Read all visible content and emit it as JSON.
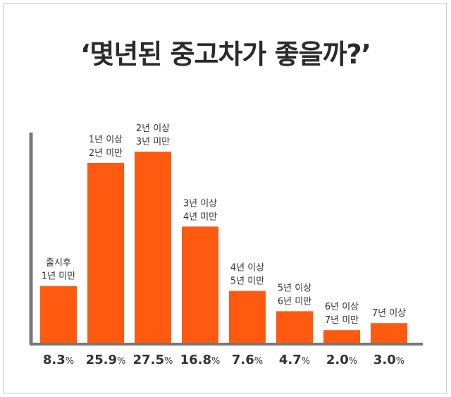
{
  "chart_data": {
    "type": "bar",
    "title": "‘몇년된 중고차가 좋을까?’",
    "categories": [
      [
        "출시후",
        "1년 미만"
      ],
      [
        "1년 이상",
        "2년 미만"
      ],
      [
        "2년 이상",
        "3년 미만"
      ],
      [
        "3년 이상",
        "4년 미만"
      ],
      [
        "4년 이상",
        "5년 미만"
      ],
      [
        "5년 이상",
        "6년 미만"
      ],
      [
        "6년 이상",
        "7년 미만"
      ],
      [
        "7년 이상"
      ]
    ],
    "values": [
      8.3,
      25.9,
      27.5,
      16.8,
      7.6,
      4.7,
      2.0,
      3.0
    ],
    "value_labels": [
      "8.3",
      "25.9",
      "27.5",
      "16.8",
      "7.6",
      "4.7",
      "2.0",
      "3.0"
    ],
    "unit": "%",
    "ylim": [
      0,
      34
    ],
    "grid": false,
    "colors": {
      "bar": "#ff5a0f",
      "axis": "#777777"
    }
  }
}
